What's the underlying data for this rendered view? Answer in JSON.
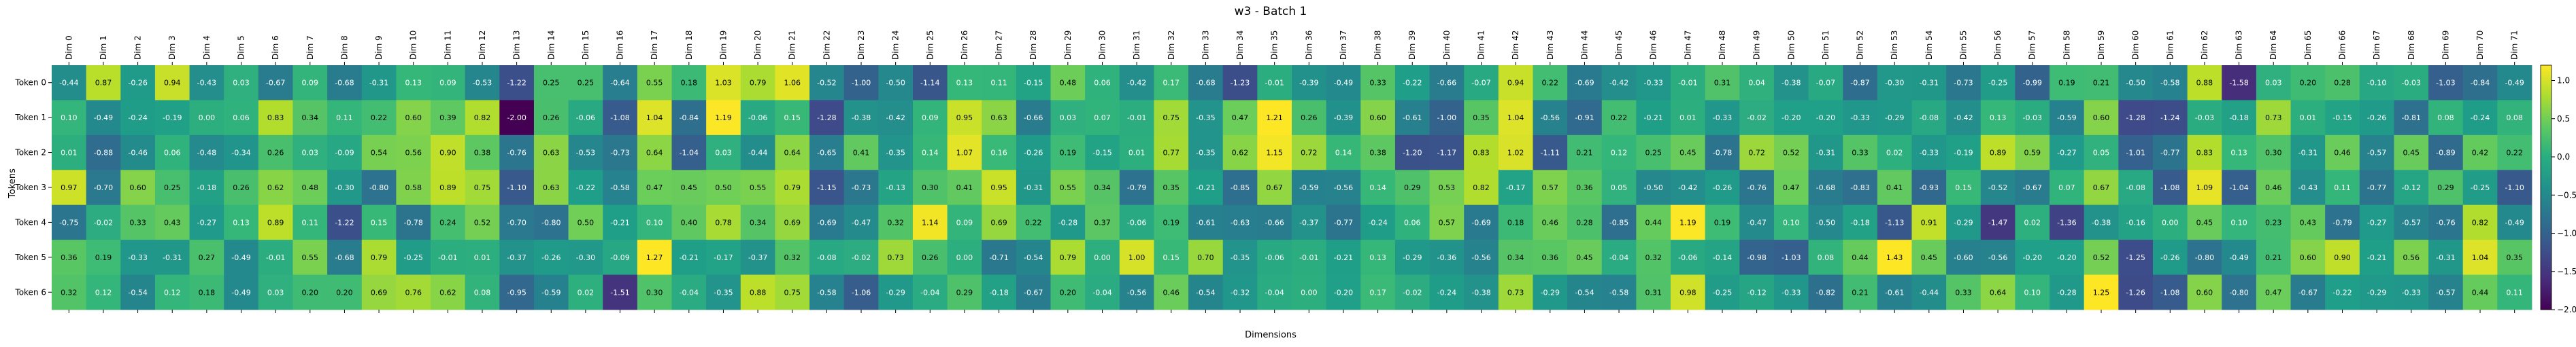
{
  "chart_data": {
    "type": "heatmap",
    "title": "w3 - Batch 1",
    "xlabel": "Dimensions",
    "ylabel": "Tokens",
    "x_categories": [
      "Dim 0",
      "Dim 1",
      "Dim 2",
      "Dim 3",
      "Dim 4",
      "Dim 5",
      "Dim 6",
      "Dim 7",
      "Dim 8",
      "Dim 9",
      "Dim 10",
      "Dim 11",
      "Dim 12",
      "Dim 13",
      "Dim 14",
      "Dim 15",
      "Dim 16",
      "Dim 17",
      "Dim 18",
      "Dim 19",
      "Dim 20",
      "Dim 21",
      "Dim 22",
      "Dim 23",
      "Dim 24",
      "Dim 25",
      "Dim 26",
      "Dim 27",
      "Dim 28",
      "Dim 29",
      "Dim 30",
      "Dim 31",
      "Dim 32",
      "Dim 33",
      "Dim 34",
      "Dim 35",
      "Dim 36",
      "Dim 37",
      "Dim 38",
      "Dim 39",
      "Dim 40",
      "Dim 41",
      "Dim 42",
      "Dim 43",
      "Dim 44",
      "Dim 45",
      "Dim 46",
      "Dim 47",
      "Dim 48",
      "Dim 49",
      "Dim 50",
      "Dim 51",
      "Dim 52",
      "Dim 53",
      "Dim 54",
      "Dim 55",
      "Dim 56",
      "Dim 57",
      "Dim 58",
      "Dim 59",
      "Dim 60",
      "Dim 61",
      "Dim 62",
      "Dim 63",
      "Dim 64",
      "Dim 65",
      "Dim 66",
      "Dim 67",
      "Dim 68",
      "Dim 69",
      "Dim 70",
      "Dim 71"
    ],
    "y_categories": [
      "Token 0",
      "Token 1",
      "Token 2",
      "Token 3",
      "Token 4",
      "Token 5",
      "Token 6"
    ],
    "values": [
      [
        -0.44,
        0.87,
        -0.26,
        0.94,
        -0.43,
        0.03,
        -0.67,
        0.09,
        -0.68,
        -0.31,
        0.13,
        0.09,
        -0.53,
        -1.22,
        0.25,
        0.25,
        -0.64,
        0.55,
        0.18,
        1.03,
        0.79,
        1.06,
        -0.52,
        -1.0,
        -0.5,
        -1.14,
        0.13,
        0.11,
        -0.15,
        0.48,
        0.06,
        -0.42,
        0.17,
        -0.68,
        -1.23,
        -0.01,
        -0.39,
        -0.49,
        0.33,
        -0.22,
        -0.66,
        -0.07,
        0.94,
        0.22,
        -0.69,
        -0.42,
        -0.33,
        -0.01,
        0.31,
        0.04,
        -0.38,
        -0.07,
        -0.87,
        -0.3,
        -0.31,
        -0.73,
        -0.25,
        -0.99,
        0.19,
        0.21,
        -0.5,
        -0.58,
        0.88,
        -1.58,
        0.03,
        0.2,
        0.28,
        -0.1,
        -0.03,
        -1.03,
        -0.84,
        -0.49
      ],
      [
        0.1,
        -0.49,
        -0.24,
        -0.19,
        0.0,
        0.06,
        0.83,
        0.34,
        0.11,
        0.22,
        0.6,
        0.39,
        0.82,
        -2.0,
        0.26,
        -0.06,
        -1.08,
        1.04,
        -0.84,
        1.19,
        -0.06,
        0.15,
        -1.28,
        -0.38,
        -0.42,
        0.09,
        0.95,
        0.63,
        -0.66,
        0.03,
        0.07,
        -0.01,
        0.75,
        -0.35,
        0.47,
        1.21,
        0.26,
        -0.39,
        0.6,
        -0.61,
        -1.0,
        0.35,
        1.04,
        -0.56,
        -0.91,
        0.22,
        -0.21,
        0.01,
        -0.33,
        -0.02,
        -0.2,
        -0.2,
        -0.33,
        -0.29,
        -0.08,
        -0.42,
        0.13,
        -0.03,
        -0.59,
        0.6,
        -1.28,
        -1.24,
        -0.03,
        -0.18,
        0.73,
        0.01,
        -0.15,
        -0.26,
        -0.81,
        0.08,
        -0.24,
        0.08
      ],
      [
        0.01,
        -0.88,
        -0.46,
        0.06,
        -0.48,
        -0.34,
        0.26,
        0.03,
        -0.09,
        0.54,
        0.56,
        0.9,
        0.38,
        -0.76,
        0.63,
        -0.53,
        -0.73,
        0.64,
        -1.04,
        0.03,
        -0.44,
        0.64,
        -0.65,
        0.41,
        -0.35,
        0.14,
        1.07,
        0.16,
        -0.26,
        0.19,
        -0.15,
        0.01,
        0.77,
        -0.35,
        0.62,
        1.15,
        0.72,
        0.14,
        0.38,
        -1.2,
        -1.17,
        0.83,
        1.02,
        -1.11,
        0.21,
        0.12,
        0.25,
        0.45,
        -0.78,
        0.72,
        0.52,
        -0.31,
        0.33,
        0.02,
        -0.33,
        -0.19,
        0.89,
        0.59,
        -0.27,
        0.05,
        -1.01,
        -0.77,
        0.83,
        0.13,
        0.3,
        -0.31,
        0.46,
        -0.57,
        0.45,
        -0.89,
        0.42,
        0.22
      ],
      [
        0.97,
        -0.7,
        0.6,
        0.25,
        -0.18,
        0.26,
        0.62,
        0.48,
        -0.3,
        -0.8,
        0.58,
        0.89,
        0.75,
        -1.1,
        0.63,
        -0.22,
        -0.58,
        0.47,
        0.45,
        0.5,
        0.55,
        0.79,
        -1.15,
        -0.73,
        -0.13,
        0.3,
        0.41,
        0.95,
        -0.31,
        0.55,
        0.34,
        -0.79,
        0.35,
        -0.21,
        -0.85,
        0.67,
        -0.59,
        -0.56,
        0.14,
        0.29,
        0.53,
        0.82,
        -0.17,
        0.57,
        0.36,
        0.05,
        -0.5,
        -0.42,
        -0.26,
        -0.76,
        0.47,
        -0.68,
        -0.83,
        0.41,
        -0.93,
        0.15,
        -0.52,
        -0.67,
        0.07,
        0.67,
        -0.08,
        -1.08,
        1.09,
        -1.04,
        0.46,
        -0.43,
        0.11,
        -0.77,
        -0.12,
        0.29,
        -0.25,
        -1.1
      ],
      [
        -0.75,
        -0.02,
        0.33,
        0.43,
        -0.27,
        0.13,
        0.89,
        0.11,
        -1.22,
        0.15,
        -0.78,
        0.24,
        0.52,
        -0.7,
        -0.8,
        0.5,
        -0.21,
        0.1,
        0.4,
        0.78,
        0.34,
        0.69,
        -0.69,
        -0.47,
        0.32,
        1.14,
        0.09,
        0.69,
        0.22,
        -0.28,
        0.37,
        -0.06,
        0.19,
        -0.61,
        -0.63,
        -0.66,
        -0.37,
        -0.77,
        -0.24,
        0.06,
        0.57,
        -0.69,
        0.18,
        0.46,
        0.28,
        -0.85,
        0.44,
        1.19,
        0.19,
        -0.47,
        0.1,
        -0.5,
        -0.18,
        -1.13,
        0.91,
        -0.29,
        -1.47,
        0.02,
        -1.36,
        -0.38,
        -0.16,
        0.0,
        0.45,
        0.1,
        0.23,
        0.43,
        -0.79,
        -0.27,
        -0.57,
        -0.76,
        0.82,
        -0.49
      ],
      [
        0.36,
        0.19,
        -0.33,
        -0.31,
        0.27,
        -0.49,
        -0.01,
        0.55,
        -0.68,
        0.79,
        -0.25,
        -0.01,
        0.01,
        -0.37,
        -0.26,
        -0.3,
        -0.09,
        1.27,
        -0.21,
        -0.17,
        -0.37,
        0.32,
        -0.08,
        -0.02,
        0.73,
        0.26,
        -0.0,
        -0.71,
        -0.54,
        0.79,
        0.0,
        1.0,
        0.15,
        0.7,
        -0.35,
        -0.06,
        -0.01,
        -0.21,
        0.13,
        -0.29,
        -0.36,
        -0.56,
        0.34,
        0.36,
        0.45,
        -0.04,
        0.32,
        -0.06,
        -0.14,
        -0.98,
        -1.03,
        0.08,
        0.44,
        1.43,
        0.45,
        -0.6,
        -0.56,
        -0.2,
        -0.2,
        0.52,
        -1.25,
        -0.26,
        -0.8,
        -0.49,
        0.21,
        0.6,
        0.9,
        -0.21,
        0.56,
        -0.31,
        1.04,
        0.35
      ],
      [
        0.32,
        0.12,
        -0.54,
        0.12,
        0.18,
        -0.49,
        0.03,
        0.2,
        0.2,
        0.69,
        0.76,
        0.62,
        0.08,
        -0.95,
        -0.59,
        0.02,
        -1.51,
        0.3,
        -0.04,
        -0.35,
        0.88,
        0.75,
        -0.58,
        -1.06,
        -0.29,
        -0.04,
        0.29,
        -0.18,
        -0.67,
        0.2,
        -0.04,
        -0.56,
        0.46,
        -0.54,
        -0.32,
        -0.04,
        0.0,
        -0.2,
        0.17,
        -0.02,
        -0.24,
        -0.38,
        0.73,
        -0.29,
        -0.54,
        -0.58,
        0.31,
        0.98,
        -0.25,
        -0.12,
        -0.33,
        -0.82,
        0.21,
        -0.61,
        -0.44,
        0.33,
        0.64,
        0.1,
        -0.28,
        1.25,
        -1.26,
        -1.08,
        0.6,
        -0.8,
        0.47,
        -0.67,
        -0.22,
        -0.29,
        -0.33,
        -0.57,
        0.44,
        0.11
      ]
    ],
    "colormap": "viridis",
    "vmin": -2.0,
    "vmax": 1.2,
    "colorbar_ticks": [
      "1.0",
      "0.5",
      "0.0",
      "−0.5",
      "−1.0",
      "−1.5",
      "−2.0"
    ],
    "annotations": true,
    "grid": false,
    "legend": "colorbar-right"
  }
}
